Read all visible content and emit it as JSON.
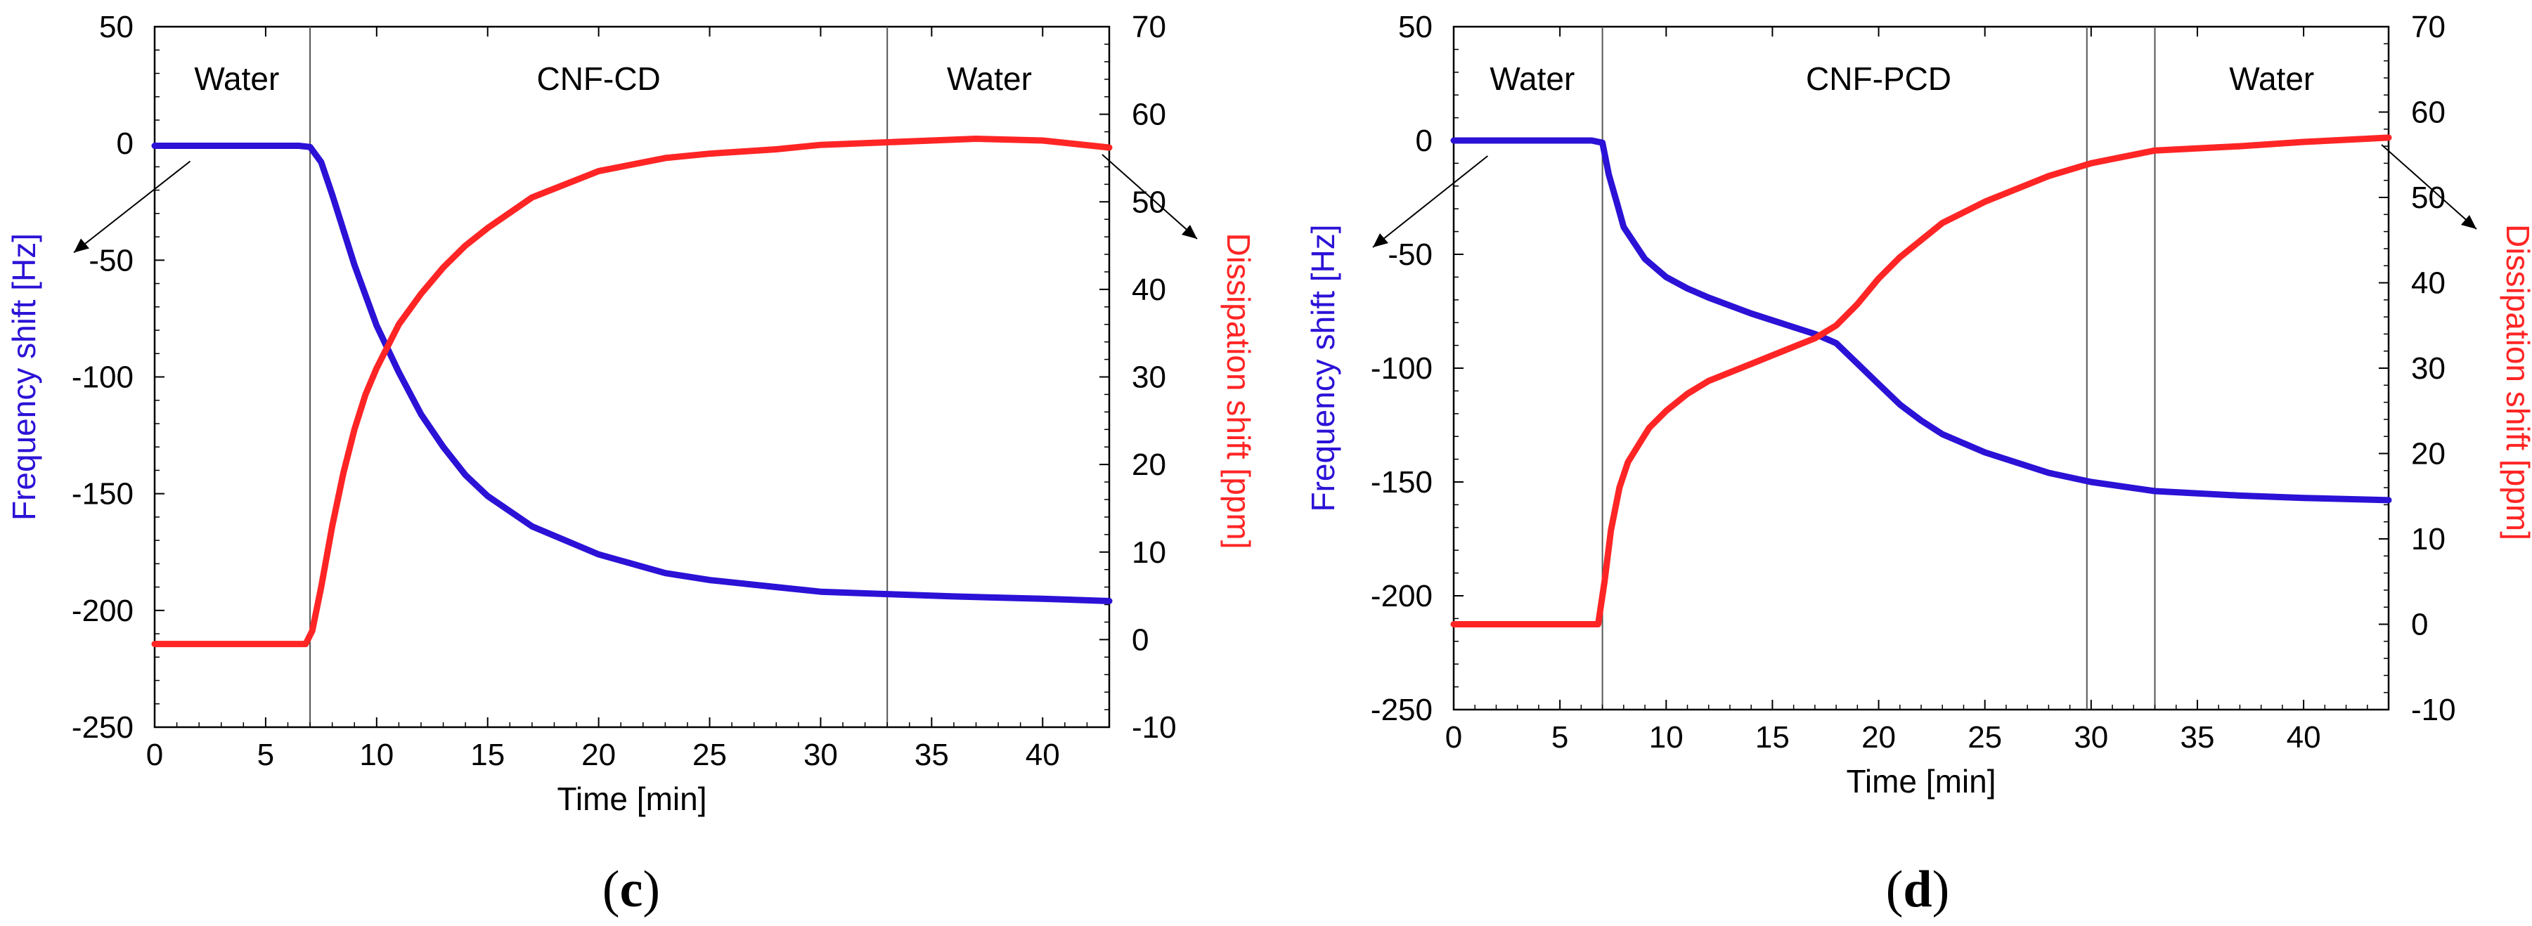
{
  "colors": {
    "frequency": "#2b12d6",
    "dissipation": "#ff2525",
    "axis": "#000000"
  },
  "chart_data": [
    {
      "type": "line",
      "panel_label": "(c)",
      "caption": {
        "open": "(",
        "letter": "c",
        "close": ")"
      },
      "xlabel": "Time [min]",
      "ylabel_left": "Frequency shift [Hz]",
      "ylabel_right": "Dissipation shift [ppm]",
      "xlim": [
        0,
        43
      ],
      "ylim_left": [
        -250,
        50
      ],
      "ylim_right": [
        -10,
        70
      ],
      "xticks": [
        0,
        5,
        10,
        15,
        20,
        25,
        30,
        35,
        40
      ],
      "yticks_left": [
        50,
        0,
        -50,
        -100,
        -150,
        -200,
        -250
      ],
      "yticks_right": [
        70,
        60,
        50,
        40,
        30,
        20,
        10,
        0,
        -10
      ],
      "region_dividers_x": [
        7.0,
        33.0
      ],
      "regions": [
        {
          "label": "Water",
          "x": 3.7
        },
        {
          "label": "CNF-CD",
          "x": 20.0
        },
        {
          "label": "Water",
          "x": 37.6
        }
      ],
      "series": [
        {
          "name": "Frequency shift",
          "axis": "left",
          "x": [
            0,
            6.5,
            7.0,
            7.5,
            8.0,
            9.0,
            10.0,
            11.0,
            12.0,
            13.0,
            14.0,
            15.0,
            17.0,
            20.0,
            23.0,
            25.0,
            28.0,
            30.0,
            33.0,
            36.0,
            40.0,
            43.0
          ],
          "values": [
            -1,
            -1,
            -1.5,
            -8,
            -22,
            -52,
            -78,
            -98,
            -116,
            -130,
            -142,
            -151,
            -164,
            -176,
            -184,
            -187,
            -190,
            -192,
            -193,
            -194,
            -195,
            -196
          ]
        },
        {
          "name": "Dissipation shift",
          "axis": "right",
          "x": [
            0,
            6.8,
            7.1,
            7.5,
            8.0,
            8.5,
            9.0,
            9.5,
            10.0,
            11.0,
            12.0,
            13.0,
            14.0,
            15.0,
            17.0,
            20.0,
            23.0,
            25.0,
            28.0,
            30.0,
            33.0,
            35.0,
            37.0,
            40.0,
            43.0
          ],
          "values": [
            -0.5,
            -0.5,
            1,
            6,
            13,
            19,
            24,
            28,
            31,
            36,
            39.5,
            42.5,
            45,
            47,
            50.5,
            53.5,
            55,
            55.5,
            56,
            56.5,
            56.8,
            57,
            57.2,
            57,
            56.2
          ]
        }
      ]
    },
    {
      "type": "line",
      "panel_label": "(d)",
      "caption": {
        "open": "(",
        "letter": "d",
        "close": ")"
      },
      "xlabel": "Time [min]",
      "ylabel_left": "Frequency shift [Hz]",
      "ylabel_right": "Dissipation shift [ppm]",
      "xlim": [
        0,
        44
      ],
      "ylim_left": [
        -250,
        50
      ],
      "ylim_right": [
        -10,
        70
      ],
      "xticks": [
        0,
        5,
        10,
        15,
        20,
        25,
        30,
        35,
        40
      ],
      "yticks_left": [
        50,
        0,
        -50,
        -100,
        -150,
        -200,
        -250
      ],
      "yticks_right": [
        70,
        60,
        50,
        40,
        30,
        20,
        10,
        0,
        -10
      ],
      "region_dividers_x": [
        7.0,
        29.8,
        33.0
      ],
      "regions": [
        {
          "label": "Water",
          "x": 3.7
        },
        {
          "label": "CNF-PCD",
          "x": 20.0
        },
        {
          "label": "Water",
          "x": 38.5
        }
      ],
      "series": [
        {
          "name": "Frequency shift",
          "axis": "left",
          "x": [
            0,
            6.5,
            7.0,
            7.3,
            7.7,
            8.0,
            9.0,
            10.0,
            11.0,
            12.0,
            14.0,
            16.0,
            17.0,
            18.0,
            19.0,
            20.0,
            21.0,
            22.0,
            23.0,
            25.0,
            28.0,
            30.0,
            33.0,
            37.0,
            40.0,
            44.0
          ],
          "values": [
            0,
            0,
            -1,
            -15,
            -28,
            -38,
            -52,
            -60,
            -65,
            -69,
            -76,
            -82,
            -85,
            -89,
            -98,
            -107,
            -116,
            -123,
            -129,
            -137,
            -146,
            -150,
            -154,
            -156,
            -157,
            -158
          ]
        },
        {
          "name": "Dissipation shift",
          "axis": "right",
          "x": [
            0,
            6.8,
            7.1,
            7.4,
            7.8,
            8.2,
            8.7,
            9.2,
            10.0,
            11.0,
            12.0,
            14.0,
            16.0,
            17.0,
            18.0,
            19.0,
            20.0,
            21.0,
            22.0,
            23.0,
            25.0,
            28.0,
            30.0,
            33.0,
            37.0,
            40.0,
            44.0
          ],
          "values": [
            0,
            0,
            5,
            11,
            16,
            19,
            21,
            23,
            25,
            27,
            28.5,
            30.5,
            32.5,
            33.5,
            35,
            37.5,
            40.5,
            43,
            45,
            47,
            49.5,
            52.5,
            54,
            55.5,
            56,
            56.5,
            57
          ]
        }
      ]
    }
  ]
}
